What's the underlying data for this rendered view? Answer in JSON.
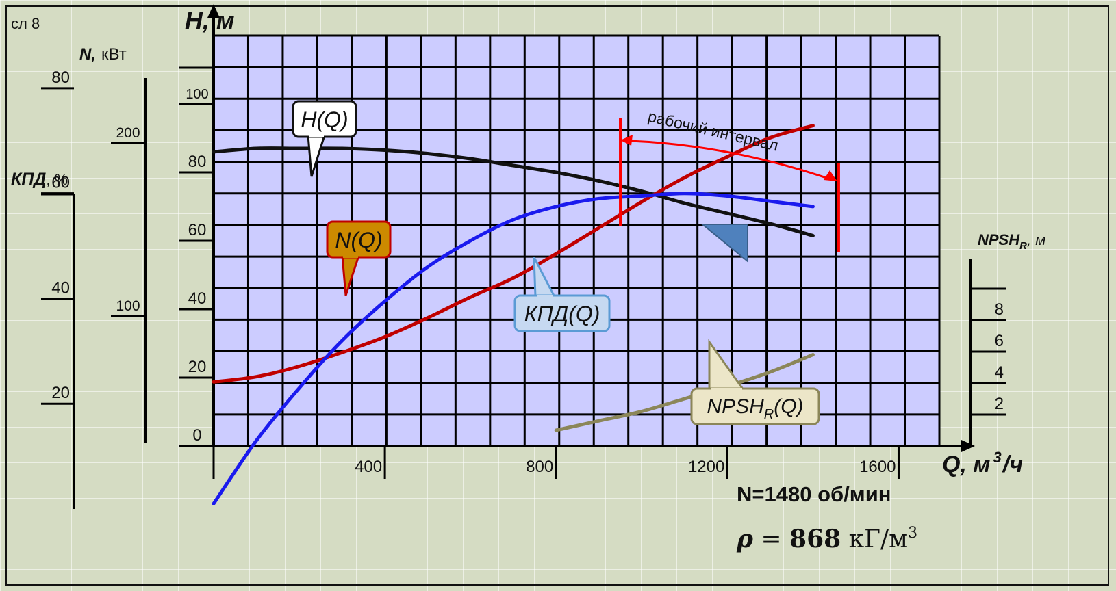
{
  "slide_label": "сл 8",
  "chart_data": {
    "type": "line",
    "x_axis": {
      "label": "Q, м",
      "label_sup": "3",
      "label_tail": "/ч",
      "ticks": [
        400,
        800,
        1200,
        1600
      ],
      "range": [
        0,
        1700
      ]
    },
    "y_axis_head": {
      "label": "H, м",
      "ticks": [
        0,
        20,
        40,
        60,
        80,
        100
      ],
      "range": [
        0,
        120
      ]
    },
    "y_axis_power": {
      "label": "N,",
      "unit": "кВт",
      "ticks": [
        100,
        200
      ],
      "range": [
        25,
        262
      ]
    },
    "y_axis_efficiency": {
      "label": "КПД",
      "unit": ", %",
      "ticks": [
        20,
        40,
        60,
        80
      ],
      "range": [
        0,
        90
      ]
    },
    "y_axis_npsh": {
      "label": "NPSH",
      "label_sub": "R",
      "unit": ", м",
      "ticks": [
        2,
        4,
        6,
        8
      ],
      "range": [
        0,
        10
      ]
    },
    "series": [
      {
        "name": "H(Q)",
        "axis": "head",
        "color": "#111111",
        "x": [
          0,
          100,
          200,
          300,
          400,
          500,
          600,
          700,
          800,
          900,
          1000,
          1100,
          1200,
          1300,
          1400
        ],
        "y": [
          86,
          87,
          87,
          87,
          86.5,
          85.5,
          84,
          82,
          80,
          77.5,
          74.5,
          71,
          68,
          65,
          61.5
        ]
      },
      {
        "name": "N(Q)",
        "axis": "power",
        "color": "#c00000",
        "x": [
          0,
          100,
          200,
          300,
          400,
          500,
          600,
          700,
          800,
          900,
          1000,
          1100,
          1200,
          1300,
          1400
        ],
        "y": [
          62,
          65,
          71,
          79,
          88,
          99,
          111,
          122,
          136,
          151,
          166,
          180,
          192,
          203,
          210
        ]
      },
      {
        "name": "КПД(Q)",
        "axis": "efficiency",
        "color": "#1a1aee",
        "x": [
          0,
          100,
          200,
          300,
          400,
          500,
          600,
          700,
          800,
          900,
          1000,
          1100,
          1200,
          1300,
          1400
        ],
        "y": [
          1,
          13,
          23,
          32,
          39.5,
          46,
          51,
          55,
          57.5,
          59,
          59.5,
          60,
          59.5,
          58.5,
          57.5
        ]
      },
      {
        "name": "NPSHR(Q)",
        "name_main": "NPSH",
        "name_sub": "R",
        "name_tail": "(Q)",
        "axis": "npsh",
        "color": "#8b8659",
        "x": [
          800,
          900,
          1000,
          1100,
          1200,
          1300,
          1400
        ],
        "y": [
          1.0,
          1.6,
          2.2,
          3.0,
          3.8,
          4.7,
          5.8
        ]
      }
    ],
    "operating_range": {
      "label": "рабочий интервал",
      "x": [
        950,
        1460
      ],
      "color": "#ff0000"
    },
    "grid": true,
    "speed_label": "N=1480 об/мин",
    "density": {
      "symbol": "ρ",
      "equals": " = ",
      "value": "868",
      "unit": " кГ/м",
      "unit_sup": "3"
    }
  }
}
